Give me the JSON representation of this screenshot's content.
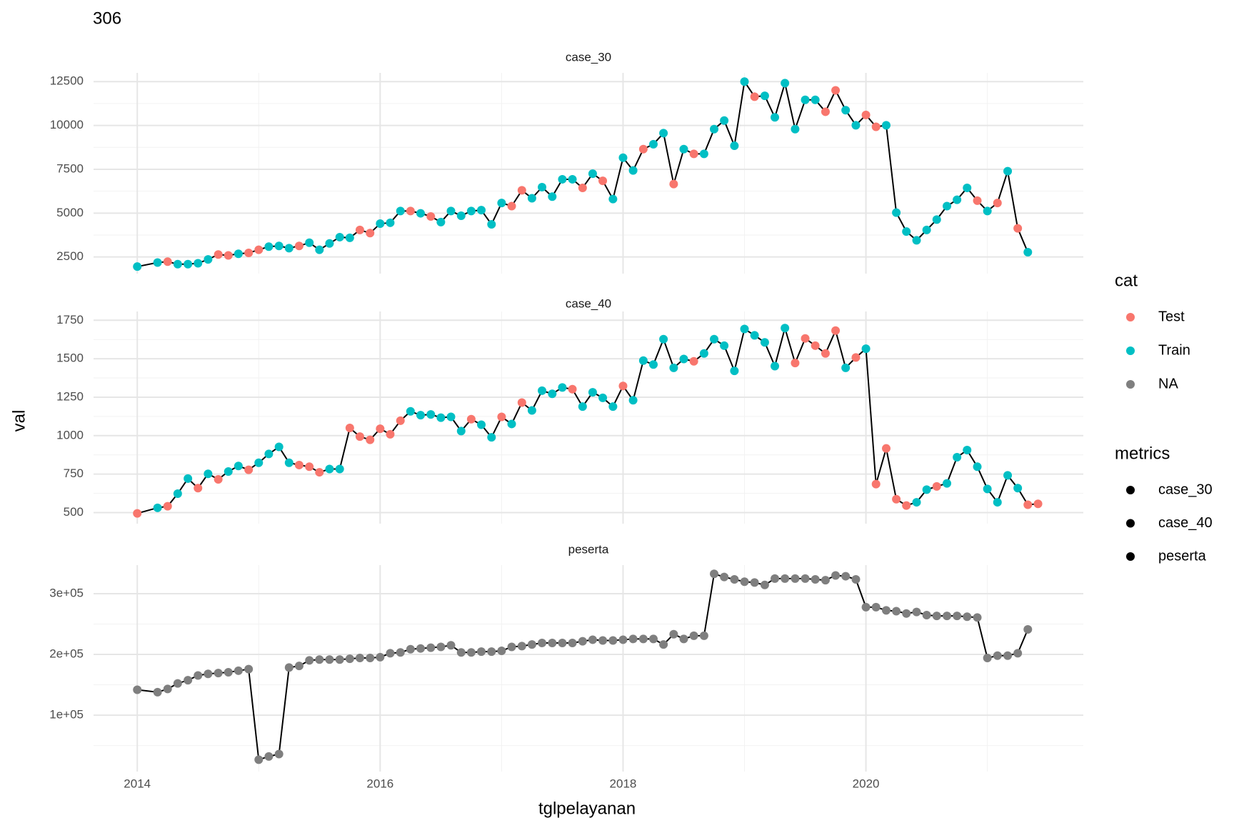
{
  "title": "306",
  "x_label": "tglpelayanan",
  "y_label": "val",
  "legend": {
    "cat": {
      "title": "cat",
      "labels": [
        "Test",
        "Train",
        "NA"
      ],
      "colors": [
        "#F8766D",
        "#00BFC4",
        "#7F7F7F"
      ]
    },
    "metrics": {
      "title": "metrics",
      "labels": [
        "case_30",
        "case_40",
        "peserta"
      ],
      "color": "#000000"
    }
  },
  "chart_data": [
    {
      "type": "line",
      "title": "case_30",
      "line_color": "#000000",
      "x": [
        2014,
        2014.167,
        2014.25,
        2014.333,
        2014.417,
        2014.5,
        2014.583,
        2014.667,
        2014.75,
        2014.833,
        2014.917,
        2015,
        2015.083,
        2015.167,
        2015.25,
        2015.333,
        2015.417,
        2015.5,
        2015.583,
        2015.667,
        2015.75,
        2015.833,
        2015.917,
        2016,
        2016.083,
        2016.167,
        2016.25,
        2016.333,
        2016.417,
        2016.5,
        2016.583,
        2016.667,
        2016.75,
        2016.833,
        2016.917,
        2017,
        2017.083,
        2017.167,
        2017.25,
        2017.333,
        2017.417,
        2017.5,
        2017.583,
        2017.667,
        2017.75,
        2017.833,
        2017.917,
        2018,
        2018.083,
        2018.167,
        2018.25,
        2018.333,
        2018.417,
        2018.5,
        2018.583,
        2018.667,
        2018.75,
        2018.833,
        2018.917,
        2019,
        2019.083,
        2019.167,
        2019.25,
        2019.333,
        2019.417,
        2019.5,
        2019.583,
        2019.667,
        2019.75,
        2019.833,
        2019.917,
        2020,
        2020.083,
        2020.167,
        2020.25,
        2020.333,
        2020.417,
        2020.5,
        2020.583,
        2020.667,
        2020.75,
        2020.833,
        2020.917,
        2021,
        2021.083,
        2021.167,
        2021.25,
        2021.333
      ],
      "values": [
        1950,
        2180,
        2230,
        2090,
        2090,
        2140,
        2360,
        2640,
        2590,
        2680,
        2730,
        2910,
        3090,
        3130,
        3000,
        3130,
        3310,
        2910,
        3270,
        3630,
        3590,
        4040,
        3860,
        4400,
        4450,
        5120,
        5120,
        4990,
        4810,
        4490,
        5120,
        4850,
        5120,
        5170,
        4360,
        5580,
        5400,
        6300,
        5850,
        6480,
        5940,
        6930,
        6930,
        6440,
        7250,
        6840,
        5800,
        8160,
        7430,
        8650,
        8930,
        9560,
        6660,
        8650,
        8380,
        8380,
        9790,
        10280,
        8840,
        12500,
        11640,
        11690,
        10460,
        12410,
        9790,
        11460,
        11460,
        10780,
        12000,
        10870,
        10010,
        10600,
        9920,
        10010,
        5030,
        3950,
        3450,
        4040,
        4630,
        5400,
        5760,
        6440,
        5710,
        5120,
        5580,
        7390,
        4130,
        2770
      ],
      "cat": [
        "Train",
        "Train",
        "Test",
        "Train",
        "Train",
        "Train",
        "Train",
        "Test",
        "Test",
        "Train",
        "Test",
        "Test",
        "Train",
        "Train",
        "Train",
        "Test",
        "Train",
        "Train",
        "Train",
        "Train",
        "Train",
        "Test",
        "Test",
        "Train",
        "Train",
        "Train",
        "Test",
        "Train",
        "Test",
        "Train",
        "Train",
        "Train",
        "Train",
        "Train",
        "Train",
        "Train",
        "Test",
        "Test",
        "Train",
        "Train",
        "Train",
        "Train",
        "Train",
        "Test",
        "Train",
        "Test",
        "Train",
        "Train",
        "Train",
        "Test",
        "Train",
        "Train",
        "Test",
        "Train",
        "Test",
        "Train",
        "Train",
        "Train",
        "Train",
        "Train",
        "Test",
        "Train",
        "Train",
        "Train",
        "Train",
        "Train",
        "Train",
        "Test",
        "Test",
        "Train",
        "Train",
        "Test",
        "Test",
        "Train",
        "Train",
        "Train",
        "Train",
        "Train",
        "Train",
        "Train",
        "Train",
        "Train",
        "Test",
        "Train",
        "Test",
        "Train",
        "Test",
        "Train"
      ],
      "xlim": [
        2013.64,
        2021.79
      ],
      "xticks": [
        2014,
        2016,
        2018,
        2020
      ],
      "ylim": [
        1550,
        12998
      ],
      "yticks": [
        2500,
        5000,
        7500,
        10000,
        12500
      ],
      "grid": true
    },
    {
      "type": "line",
      "title": "case_40",
      "line_color": "#000000",
      "x": [
        2014,
        2014.167,
        2014.25,
        2014.333,
        2014.417,
        2014.5,
        2014.583,
        2014.667,
        2014.75,
        2014.833,
        2014.917,
        2015,
        2015.083,
        2015.167,
        2015.25,
        2015.333,
        2015.417,
        2015.5,
        2015.583,
        2015.667,
        2015.75,
        2015.833,
        2015.917,
        2016,
        2016.083,
        2016.167,
        2016.25,
        2016.333,
        2016.417,
        2016.5,
        2016.583,
        2016.667,
        2016.75,
        2016.833,
        2016.917,
        2017,
        2017.083,
        2017.167,
        2017.25,
        2017.333,
        2017.417,
        2017.5,
        2017.583,
        2017.667,
        2017.75,
        2017.833,
        2017.917,
        2018,
        2018.083,
        2018.167,
        2018.25,
        2018.333,
        2018.417,
        2018.5,
        2018.583,
        2018.667,
        2018.75,
        2018.833,
        2018.917,
        2019,
        2019.083,
        2019.167,
        2019.25,
        2019.333,
        2019.417,
        2019.5,
        2019.583,
        2019.667,
        2019.75,
        2019.833,
        2019.917,
        2020,
        2020.083,
        2020.167,
        2020.25,
        2020.333,
        2020.417,
        2020.5,
        2020.583,
        2020.667,
        2020.75,
        2020.833,
        2020.917,
        2021,
        2021.083,
        2021.167,
        2021.25,
        2021.333,
        2021.417
      ],
      "values": [
        495,
        531,
        541,
        623,
        721,
        659,
        752,
        716,
        767,
        803,
        778,
        824,
        881,
        927,
        824,
        809,
        798,
        762,
        783,
        783,
        1050,
        994,
        973,
        1045,
        1009,
        1097,
        1158,
        1133,
        1138,
        1117,
        1122,
        1030,
        1107,
        1071,
        989,
        1122,
        1076,
        1215,
        1164,
        1292,
        1272,
        1313,
        1302,
        1189,
        1282,
        1246,
        1189,
        1323,
        1230,
        1488,
        1462,
        1627,
        1441,
        1498,
        1483,
        1534,
        1627,
        1585,
        1421,
        1693,
        1652,
        1606,
        1452,
        1699,
        1472,
        1632,
        1585,
        1534,
        1683,
        1441,
        1508,
        1565,
        685,
        917,
        587,
        546,
        567,
        649,
        670,
        690,
        860,
        906,
        798,
        654,
        567,
        742,
        659,
        551,
        557
      ],
      "cat": [
        "Test",
        "Train",
        "Test",
        "Train",
        "Train",
        "Test",
        "Train",
        "Test",
        "Train",
        "Train",
        "Test",
        "Train",
        "Train",
        "Train",
        "Train",
        "Test",
        "Test",
        "Test",
        "Train",
        "Train",
        "Test",
        "Test",
        "Test",
        "Test",
        "Test",
        "Test",
        "Train",
        "Train",
        "Train",
        "Train",
        "Train",
        "Train",
        "Test",
        "Train",
        "Train",
        "Test",
        "Train",
        "Test",
        "Train",
        "Train",
        "Train",
        "Train",
        "Test",
        "Train",
        "Train",
        "Train",
        "Train",
        "Test",
        "Train",
        "Train",
        "Train",
        "Train",
        "Train",
        "Train",
        "Test",
        "Train",
        "Train",
        "Train",
        "Train",
        "Train",
        "Train",
        "Train",
        "Train",
        "Train",
        "Test",
        "Test",
        "Test",
        "Test",
        "Test",
        "Train",
        "Test",
        "Train",
        "Test",
        "Test",
        "Test",
        "Test",
        "Train",
        "Train",
        "Test",
        "Train",
        "Train",
        "Train",
        "Train",
        "Train",
        "Train",
        "Train",
        "Train",
        "Test",
        "Test"
      ],
      "xlim": [
        2013.64,
        2021.79
      ],
      "xticks": [
        2014,
        2016,
        2018,
        2020
      ],
      "ylim": [
        428,
        1807
      ],
      "yticks": [
        500,
        750,
        1000,
        1250,
        1500,
        1750
      ],
      "grid": true
    },
    {
      "type": "line",
      "title": "peserta",
      "line_color": "#000000",
      "x": [
        2014,
        2014.167,
        2014.25,
        2014.333,
        2014.417,
        2014.5,
        2014.583,
        2014.667,
        2014.75,
        2014.833,
        2014.917,
        2015,
        2015.083,
        2015.167,
        2015.25,
        2015.333,
        2015.417,
        2015.5,
        2015.583,
        2015.667,
        2015.75,
        2015.833,
        2015.917,
        2016,
        2016.083,
        2016.167,
        2016.25,
        2016.333,
        2016.417,
        2016.5,
        2016.583,
        2016.667,
        2016.75,
        2016.833,
        2016.917,
        2017,
        2017.083,
        2017.167,
        2017.25,
        2017.333,
        2017.417,
        2017.5,
        2017.583,
        2017.667,
        2017.75,
        2017.833,
        2017.917,
        2018,
        2018.083,
        2018.167,
        2018.25,
        2018.333,
        2018.417,
        2018.5,
        2018.583,
        2018.667,
        2018.75,
        2018.833,
        2018.917,
        2019,
        2019.083,
        2019.167,
        2019.25,
        2019.333,
        2019.417,
        2019.5,
        2019.583,
        2019.667,
        2019.75,
        2019.833,
        2019.917,
        2020,
        2020.083,
        2020.167,
        2020.25,
        2020.333,
        2020.417,
        2020.5,
        2020.583,
        2020.667,
        2020.75,
        2020.833,
        2020.917,
        2021,
        2021.083,
        2021.167,
        2021.25,
        2021.333
      ],
      "values": [
        141800,
        137900,
        143100,
        152300,
        157500,
        165400,
        168000,
        169300,
        170600,
        173200,
        175800,
        26800,
        32000,
        36000,
        178400,
        181000,
        190200,
        191500,
        191500,
        191500,
        192800,
        194100,
        194100,
        195400,
        201900,
        203300,
        208500,
        209800,
        211100,
        212400,
        215000,
        203300,
        203300,
        204600,
        204600,
        205900,
        212400,
        213700,
        216300,
        218900,
        218900,
        218900,
        218900,
        221600,
        224200,
        222900,
        222900,
        224200,
        225500,
        225500,
        225500,
        216300,
        233300,
        225500,
        230700,
        230700,
        332600,
        327400,
        323500,
        319600,
        318300,
        314300,
        324800,
        324800,
        324800,
        324800,
        323500,
        322200,
        330000,
        328700,
        323500,
        277800,
        277800,
        272500,
        271200,
        267300,
        269900,
        264700,
        263400,
        263400,
        263400,
        262100,
        260800,
        194100,
        198000,
        198000,
        201900,
        241200
      ],
      "cat": [
        null,
        null,
        null,
        null,
        null,
        null,
        null,
        null,
        null,
        null,
        null,
        null,
        null,
        null,
        null,
        null,
        null,
        null,
        null,
        null,
        null,
        null,
        null,
        null,
        null,
        null,
        null,
        null,
        null,
        null,
        null,
        null,
        null,
        null,
        null,
        null,
        null,
        null,
        null,
        null,
        null,
        null,
        null,
        null,
        null,
        null,
        null,
        null,
        null,
        null,
        null,
        null,
        null,
        null,
        null,
        null,
        null,
        null,
        null,
        null,
        null,
        null,
        null,
        null,
        null,
        null,
        null,
        null,
        null,
        null,
        null,
        null,
        null,
        null,
        null,
        null,
        null,
        null,
        null,
        null,
        null,
        null,
        null,
        null,
        null,
        null,
        null,
        null
      ],
      "xlim": [
        2013.64,
        2021.79
      ],
      "xticks": [
        2014,
        2016,
        2018,
        2020
      ],
      "ylim": [
        7200,
        347000
      ],
      "yticks": [
        {
          "value": 100000,
          "label": "1e+05"
        },
        {
          "value": 200000,
          "label": "2e+05"
        },
        {
          "value": 300000,
          "label": "3e+05"
        }
      ],
      "grid": true
    }
  ]
}
